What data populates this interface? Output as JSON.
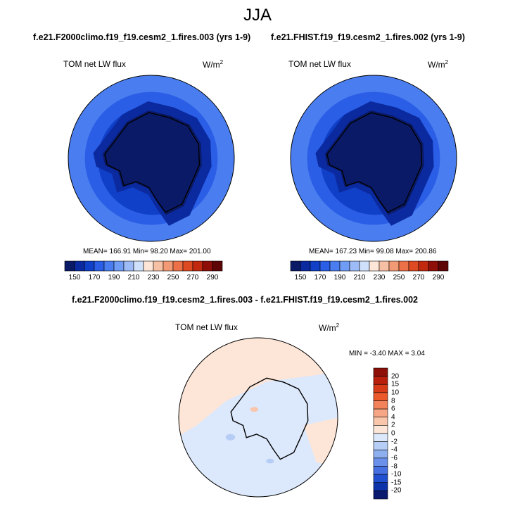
{
  "figure": {
    "season": "JJA",
    "diff_title": "f.e21.F2000climo.f19_f19.cesm2_1.fires.003 - f.e21.FHIST.f19_f19.cesm2_1.fires.002"
  },
  "chart_data": [
    {
      "type": "heatmap",
      "projection": "south-polar-stereographic",
      "title": "f.e21.F2000climo.f19_f19.cesm2_1.fires.003 (yrs 1-9)",
      "variable": "TOM net LW flux",
      "units": "W/m",
      "units_sup": "2",
      "stats": {
        "mean": 166.91,
        "min": 98.2,
        "max": 201.0
      },
      "stats_text": "MEAN= 166.91  Min=  98.20  Max= 201.00",
      "colorbar": {
        "levels": [
          150,
          160,
          170,
          180,
          190,
          200,
          210,
          220,
          230,
          240,
          250,
          260,
          270,
          280,
          290
        ],
        "tick_labels": [
          "150",
          "170",
          "190",
          "210",
          "230",
          "250",
          "270",
          "290"
        ],
        "colors": [
          "#0a1a66",
          "#0b2aa0",
          "#1040c8",
          "#2a5ee6",
          "#4a7ef0",
          "#6f9cf4",
          "#9dbcf7",
          "#cfe0fb",
          "#fde6d8",
          "#f6c0a4",
          "#f29a76",
          "#ec7048",
          "#de4a22",
          "#c22a10",
          "#8e0f08",
          "#5e0606"
        ]
      }
    },
    {
      "type": "heatmap",
      "projection": "south-polar-stereographic",
      "title": "f.e21.FHIST.f19_f19.cesm2_1.fires.002 (yrs 1-9)",
      "variable": "TOM net LW flux",
      "units": "W/m",
      "units_sup": "2",
      "stats": {
        "mean": 167.23,
        "min": 99.08,
        "max": 200.86
      },
      "stats_text": "MEAN= 167.23  Min=  99.08  Max= 200.86",
      "colorbar": {
        "levels": [
          150,
          160,
          170,
          180,
          190,
          200,
          210,
          220,
          230,
          240,
          250,
          260,
          270,
          280,
          290
        ],
        "tick_labels": [
          "150",
          "170",
          "190",
          "210",
          "230",
          "250",
          "270",
          "290"
        ],
        "colors": [
          "#0a1a66",
          "#0b2aa0",
          "#1040c8",
          "#2a5ee6",
          "#4a7ef0",
          "#6f9cf4",
          "#9dbcf7",
          "#cfe0fb",
          "#fde6d8",
          "#f6c0a4",
          "#f29a76",
          "#ec7048",
          "#de4a22",
          "#c22a10",
          "#8e0f08",
          "#5e0606"
        ]
      }
    },
    {
      "type": "heatmap",
      "projection": "south-polar-stereographic",
      "title": "f.e21.F2000climo.f19_f19.cesm2_1.fires.003 - f.e21.FHIST.f19_f19.cesm2_1.fires.002",
      "variable": "TOM net LW flux",
      "units": "W/m",
      "units_sup": "2",
      "stats": {
        "min": -3.4,
        "max": 3.04
      },
      "stats_text": "MIN =  -3.40 MAX =   3.04",
      "colorbar": {
        "orientation": "vertical",
        "levels": [
          -20,
          -15,
          -10,
          -8,
          -6,
          -4,
          -2,
          0,
          2,
          4,
          6,
          8,
          10,
          15,
          20
        ],
        "tick_labels": [
          "20",
          "15",
          "10",
          "8",
          "6",
          "4",
          "2",
          "0",
          "-2",
          "-4",
          "-6",
          "-8",
          "-10",
          "-15",
          "-20"
        ],
        "colors_top_to_bottom": [
          "#8e0f08",
          "#b81e0a",
          "#d63a16",
          "#ec5a2c",
          "#f2825a",
          "#f6a684",
          "#f9c6ac",
          "#fde6d8",
          "#dce8fb",
          "#b6cdf6",
          "#8eafef",
          "#6a90ea",
          "#4670e2",
          "#2050cf",
          "#0c34a8",
          "#0a1a6e"
        ]
      }
    }
  ]
}
